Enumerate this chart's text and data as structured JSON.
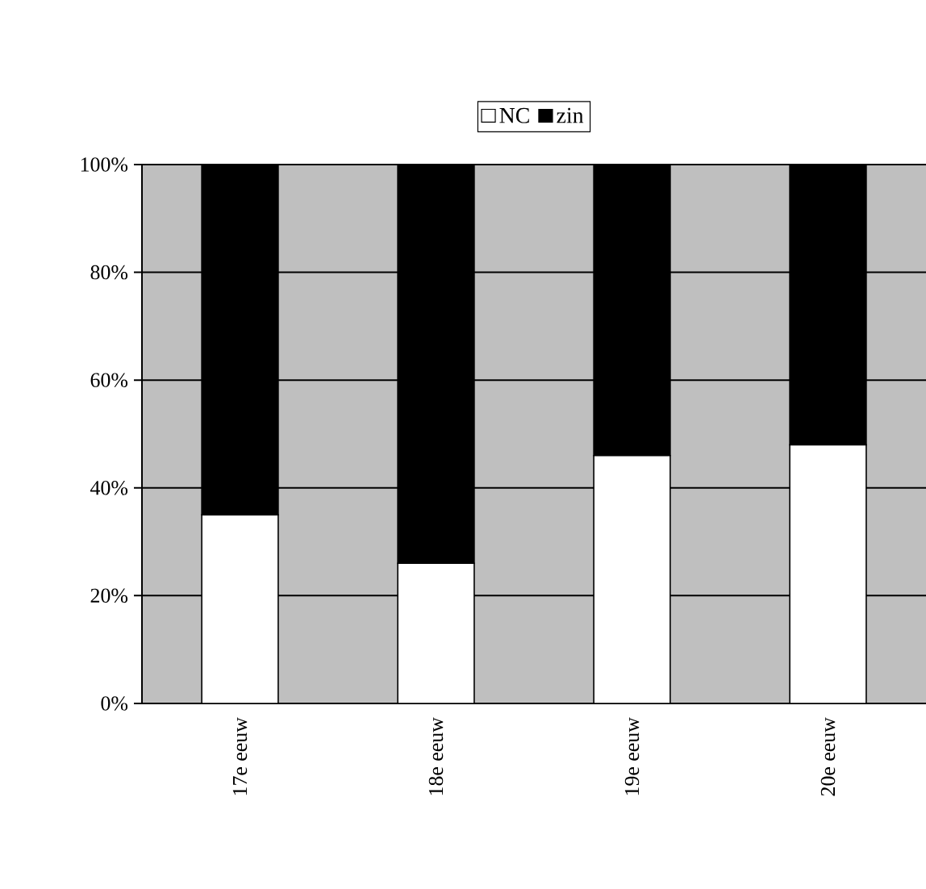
{
  "chart_data": {
    "type": "bar",
    "stacked": true,
    "categories": [
      "17e eeuw",
      "18e eeuw",
      "19e eeuw",
      "20e eeuw"
    ],
    "series": [
      {
        "name": "NC",
        "color": "#ffffff",
        "values": [
          35,
          26,
          46,
          48
        ]
      },
      {
        "name": "zin",
        "color": "#000000",
        "values": [
          65,
          74,
          54,
          52
        ]
      }
    ],
    "ylim": [
      0,
      100
    ],
    "yticks": [
      {
        "value": 0,
        "label": "0%"
      },
      {
        "value": 20,
        "label": "20%"
      },
      {
        "value": 40,
        "label": "40%"
      },
      {
        "value": 60,
        "label": "60%"
      },
      {
        "value": 80,
        "label": "80%"
      },
      {
        "value": 100,
        "label": "100%"
      }
    ],
    "grid": "y",
    "legend": "top"
  }
}
